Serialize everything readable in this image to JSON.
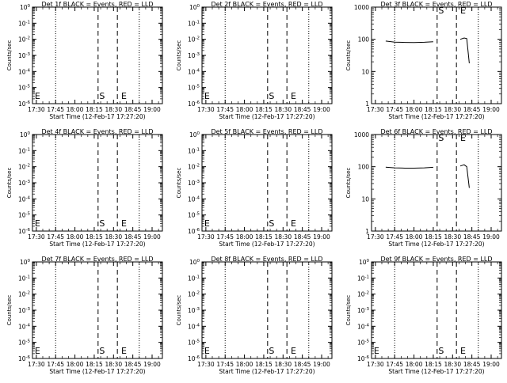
{
  "figure": {
    "x_tick_labels": [
      "17:30",
      "17:45",
      "18:00",
      "18:15",
      "18:30",
      "18:45",
      "19:00"
    ],
    "xlabel": "Start Time (12-Feb-17 17:27:20)",
    "ylabel": "Counts/sec"
  },
  "chart_data": [
    {
      "type": "line",
      "title": "Det 1f BLACK = Events, RED = LLD",
      "xlabel": "Start Time (12-Feb-17 17:27:20)",
      "ylabel": "Counts/sec",
      "x_ticks": [
        "17:30",
        "17:45",
        "18:00",
        "18:15",
        "18:30",
        "18:45",
        "19:00"
      ],
      "y_ticks": [
        "10^-6",
        "10^-5",
        "10^-4",
        "10^-3",
        "10^-2",
        "10^-1",
        "10^0"
      ],
      "y_scale": "log",
      "y_min_exp": -6,
      "y_max_exp": 0,
      "dotted_lines": [
        "17:45",
        "18:50"
      ],
      "dashed_lines": [
        "18:18",
        "18:33"
      ],
      "markers": [
        {
          "label": "E",
          "x": "17:30"
        },
        {
          "label": "S",
          "x": "18:19"
        },
        {
          "label": "E",
          "x": "18:36"
        }
      ],
      "series": []
    },
    {
      "type": "line",
      "title": "Det 2f BLACK = Events, RED = LLD",
      "xlabel": "Start Time (12-Feb-17 17:27:20)",
      "ylabel": "Counts/sec",
      "x_ticks": [
        "17:30",
        "17:45",
        "18:00",
        "18:15",
        "18:30",
        "18:45",
        "19:00"
      ],
      "y_ticks": [
        "10^-6",
        "10^-5",
        "10^-4",
        "10^-3",
        "10^-2",
        "10^-1",
        "10^0"
      ],
      "y_scale": "log",
      "y_min_exp": -6,
      "y_max_exp": 0,
      "dotted_lines": [
        "17:45",
        "18:50"
      ],
      "dashed_lines": [
        "18:18",
        "18:33"
      ],
      "markers": [
        {
          "label": "E",
          "x": "17:30"
        },
        {
          "label": "S",
          "x": "18:19"
        },
        {
          "label": "E",
          "x": "18:36"
        }
      ],
      "series": []
    },
    {
      "type": "line",
      "title": "Det 3f BLACK = Events, RED = LLD",
      "xlabel": "Start Time (12-Feb-17 17:27:20)",
      "ylabel": "Counts/sec",
      "x_ticks": [
        "17:30",
        "17:45",
        "18:00",
        "18:15",
        "18:30",
        "18:45",
        "19:00"
      ],
      "y_ticks": [
        "1",
        "10",
        "100",
        "1000"
      ],
      "y_scale": "log",
      "y_min_exp": 0,
      "y_max_exp": 3,
      "dotted_lines": [
        "17:45",
        "18:50"
      ],
      "dashed_lines": [
        "18:18",
        "18:33"
      ],
      "markers": [
        {
          "label": "S",
          "x": "18:19"
        },
        {
          "label": "E",
          "x": "18:36"
        }
      ],
      "series": [
        {
          "segments": [
            {
              "x": [
                "17:38",
                "17:45",
                "17:53",
                "18:00",
                "18:08",
                "18:15"
              ],
              "y": [
                88,
                82,
                80,
                79,
                81,
                84
              ]
            },
            {
              "x": [
                "18:36",
                "18:39",
                "18:41",
                "18:43"
              ],
              "y": [
                100,
                110,
                105,
                18
              ]
            }
          ]
        }
      ]
    },
    {
      "type": "line",
      "title": "Det 4f BLACK = Events, RED = LLD",
      "xlabel": "Start Time (12-Feb-17 17:27:20)",
      "ylabel": "Counts/sec",
      "x_ticks": [
        "17:30",
        "17:45",
        "18:00",
        "18:15",
        "18:30",
        "18:45",
        "19:00"
      ],
      "y_ticks": [
        "10^-6",
        "10^-5",
        "10^-4",
        "10^-3",
        "10^-2",
        "10^-1",
        "10^0"
      ],
      "y_scale": "log",
      "y_min_exp": -6,
      "y_max_exp": 0,
      "dotted_lines": [
        "17:45",
        "18:50"
      ],
      "dashed_lines": [
        "18:18",
        "18:33"
      ],
      "markers": [
        {
          "label": "E",
          "x": "17:30"
        },
        {
          "label": "S",
          "x": "18:19"
        },
        {
          "label": "E",
          "x": "18:36"
        }
      ],
      "series": []
    },
    {
      "type": "line",
      "title": "Det 5f BLACK = Events, RED = LLD",
      "xlabel": "Start Time (12-Feb-17 17:27:20)",
      "ylabel": "Counts/sec",
      "x_ticks": [
        "17:30",
        "17:45",
        "18:00",
        "18:15",
        "18:30",
        "18:45",
        "19:00"
      ],
      "y_ticks": [
        "10^-6",
        "10^-5",
        "10^-4",
        "10^-3",
        "10^-2",
        "10^-1",
        "10^0"
      ],
      "y_scale": "log",
      "y_min_exp": -6,
      "y_max_exp": 0,
      "dotted_lines": [
        "17:45",
        "18:50"
      ],
      "dashed_lines": [
        "18:18",
        "18:33"
      ],
      "markers": [
        {
          "label": "E",
          "x": "17:30"
        },
        {
          "label": "S",
          "x": "18:19"
        },
        {
          "label": "E",
          "x": "18:36"
        }
      ],
      "series": []
    },
    {
      "type": "line",
      "title": "Det 6f BLACK = Events, RED = LLD",
      "xlabel": "Start Time (12-Feb-17 17:27:20)",
      "ylabel": "Counts/sec",
      "x_ticks": [
        "17:30",
        "17:45",
        "18:00",
        "18:15",
        "18:30",
        "18:45",
        "19:00"
      ],
      "y_ticks": [
        "1",
        "10",
        "100",
        "1000"
      ],
      "y_scale": "log",
      "y_min_exp": 0,
      "y_max_exp": 3,
      "dotted_lines": [
        "17:45",
        "18:50"
      ],
      "dashed_lines": [
        "18:18",
        "18:33"
      ],
      "markers": [
        {
          "label": "S",
          "x": "18:19"
        },
        {
          "label": "E",
          "x": "18:36"
        }
      ],
      "series": [
        {
          "segments": [
            {
              "x": [
                "17:38",
                "17:45",
                "17:53",
                "18:00",
                "18:08",
                "18:15"
              ],
              "y": [
                97,
                92,
                90,
                90,
                92,
                96
              ]
            },
            {
              "x": [
                "18:36",
                "18:39",
                "18:41",
                "18:43"
              ],
              "y": [
                105,
                115,
                100,
                22
              ]
            }
          ]
        }
      ]
    },
    {
      "type": "line",
      "title": "Det 7f BLACK = Events, RED = LLD",
      "xlabel": "Start Time (12-Feb-17 17:27:20)",
      "ylabel": "Counts/sec",
      "x_ticks": [
        "17:30",
        "17:45",
        "18:00",
        "18:15",
        "18:30",
        "18:45",
        "19:00"
      ],
      "y_ticks": [
        "10^-6",
        "10^-5",
        "10^-4",
        "10^-3",
        "10^-2",
        "10^-1",
        "10^0"
      ],
      "y_scale": "log",
      "y_min_exp": -6,
      "y_max_exp": 0,
      "dotted_lines": [
        "17:45",
        "18:50"
      ],
      "dashed_lines": [
        "18:18",
        "18:33"
      ],
      "markers": [
        {
          "label": "E",
          "x": "17:30"
        },
        {
          "label": "S",
          "x": "18:19"
        },
        {
          "label": "E",
          "x": "18:36"
        }
      ],
      "series": []
    },
    {
      "type": "line",
      "title": "Det 8f BLACK = Events, RED = LLD",
      "xlabel": "Start Time (12-Feb-17 17:27:20)",
      "ylabel": "Counts/sec",
      "x_ticks": [
        "17:30",
        "17:45",
        "18:00",
        "18:15",
        "18:30",
        "18:45",
        "19:00"
      ],
      "y_ticks": [
        "10^-6",
        "10^-5",
        "10^-4",
        "10^-3",
        "10^-2",
        "10^-1",
        "10^0"
      ],
      "y_scale": "log",
      "y_min_exp": -6,
      "y_max_exp": 0,
      "dotted_lines": [
        "17:45",
        "18:50"
      ],
      "dashed_lines": [
        "18:18",
        "18:33"
      ],
      "markers": [
        {
          "label": "E",
          "x": "17:30"
        },
        {
          "label": "S",
          "x": "18:19"
        },
        {
          "label": "E",
          "x": "18:36"
        }
      ],
      "series": []
    },
    {
      "type": "line",
      "title": "Det 9f BLACK = Events, RED = LLD",
      "xlabel": "Start Time (12-Feb-17 17:27:20)",
      "ylabel": "Counts/sec",
      "x_ticks": [
        "17:30",
        "17:45",
        "18:00",
        "18:15",
        "18:30",
        "18:45",
        "19:00"
      ],
      "y_ticks": [
        "10^-6",
        "10^-5",
        "10^-4",
        "10^-3",
        "10^-2",
        "10^-1",
        "10^0"
      ],
      "y_scale": "log",
      "y_min_exp": -6,
      "y_max_exp": 0,
      "dotted_lines": [
        "17:45",
        "18:50"
      ],
      "dashed_lines": [
        "18:18",
        "18:33"
      ],
      "markers": [
        {
          "label": "E",
          "x": "17:30"
        },
        {
          "label": "S",
          "x": "18:19"
        },
        {
          "label": "E",
          "x": "18:36"
        }
      ],
      "series": []
    }
  ]
}
